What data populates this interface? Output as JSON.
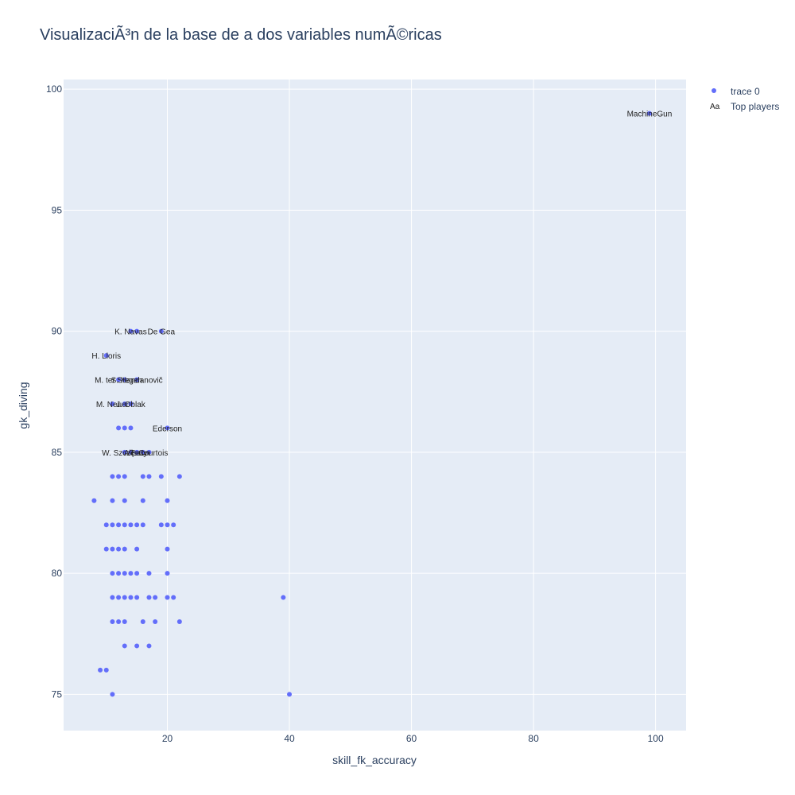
{
  "chart_data": {
    "type": "scatter",
    "title": "VisualizaciÃ³n de la base de a dos variables numÃ©ricas",
    "xlabel": "skill_fk_accuracy",
    "ylabel": "gk_diving",
    "xlim": [
      3,
      105
    ],
    "ylim": [
      73.5,
      100.4
    ],
    "x_ticks": [
      20,
      40,
      60,
      80,
      100
    ],
    "y_ticks": [
      75,
      80,
      85,
      90,
      95,
      100
    ],
    "grid": true,
    "legend_position": "top-right",
    "colors": {
      "marker": "#636efa",
      "plot_bg": "#e5ecf6",
      "grid": "#ffffff",
      "text": "#2a3f5f"
    },
    "series": [
      {
        "name": "trace 0",
        "points": [
          [
            99,
            99
          ],
          [
            14,
            90
          ],
          [
            15,
            90
          ],
          [
            19,
            90
          ],
          [
            10,
            89
          ],
          [
            12,
            88
          ],
          [
            13,
            88
          ],
          [
            15,
            88
          ],
          [
            11,
            87
          ],
          [
            13,
            87
          ],
          [
            14,
            87
          ],
          [
            12,
            86
          ],
          [
            13,
            86
          ],
          [
            14,
            86
          ],
          [
            20,
            86
          ],
          [
            13,
            85
          ],
          [
            14,
            85
          ],
          [
            15,
            85
          ],
          [
            16,
            85
          ],
          [
            17,
            85
          ],
          [
            11,
            84
          ],
          [
            12,
            84
          ],
          [
            13,
            84
          ],
          [
            16,
            84
          ],
          [
            17,
            84
          ],
          [
            19,
            84
          ],
          [
            22,
            84
          ],
          [
            8,
            83
          ],
          [
            11,
            83
          ],
          [
            13,
            83
          ],
          [
            16,
            83
          ],
          [
            20,
            83
          ],
          [
            10,
            82
          ],
          [
            11,
            82
          ],
          [
            12,
            82
          ],
          [
            13,
            82
          ],
          [
            14,
            82
          ],
          [
            15,
            82
          ],
          [
            16,
            82
          ],
          [
            19,
            82
          ],
          [
            20,
            82
          ],
          [
            21,
            82
          ],
          [
            10,
            81
          ],
          [
            11,
            81
          ],
          [
            12,
            81
          ],
          [
            13,
            81
          ],
          [
            15,
            81
          ],
          [
            20,
            81
          ],
          [
            11,
            80
          ],
          [
            12,
            80
          ],
          [
            13,
            80
          ],
          [
            14,
            80
          ],
          [
            15,
            80
          ],
          [
            17,
            80
          ],
          [
            20,
            80
          ],
          [
            11,
            79
          ],
          [
            12,
            79
          ],
          [
            13,
            79
          ],
          [
            14,
            79
          ],
          [
            15,
            79
          ],
          [
            17,
            79
          ],
          [
            18,
            79
          ],
          [
            20,
            79
          ],
          [
            21,
            79
          ],
          [
            39,
            79
          ],
          [
            11,
            78
          ],
          [
            12,
            78
          ],
          [
            13,
            78
          ],
          [
            16,
            78
          ],
          [
            18,
            78
          ],
          [
            22,
            78
          ],
          [
            13,
            77
          ],
          [
            15,
            77
          ],
          [
            17,
            77
          ],
          [
            9,
            76
          ],
          [
            10,
            76
          ],
          [
            11,
            75
          ],
          [
            40,
            75
          ]
        ]
      }
    ],
    "text_trace": {
      "name": "Top players",
      "labels": [
        {
          "text": "MachineGun",
          "x": 99,
          "y": 99
        },
        {
          "text": "K. Navas",
          "x": 14,
          "y": 90
        },
        {
          "text": "De Gea",
          "x": 19,
          "y": 90
        },
        {
          "text": "H. Lloris",
          "x": 10,
          "y": 89
        },
        {
          "text": "M. ter Stegen",
          "x": 12,
          "y": 88
        },
        {
          "text": "S. Handanovič",
          "x": 15,
          "y": 88
        },
        {
          "text": "M. Neuer",
          "x": 11,
          "y": 87
        },
        {
          "text": "J. Oblak",
          "x": 14,
          "y": 87
        },
        {
          "text": "Ederson",
          "x": 20,
          "y": 86
        },
        {
          "text": "W. Szczęsny",
          "x": 13,
          "y": 85
        },
        {
          "text": "Alisson",
          "x": 15,
          "y": 85
        },
        {
          "text": "T. Courtois",
          "x": 17,
          "y": 85
        }
      ]
    }
  },
  "legend": {
    "marker_label": "trace 0",
    "text_label": "Top players",
    "text_symbol": "Aa"
  }
}
